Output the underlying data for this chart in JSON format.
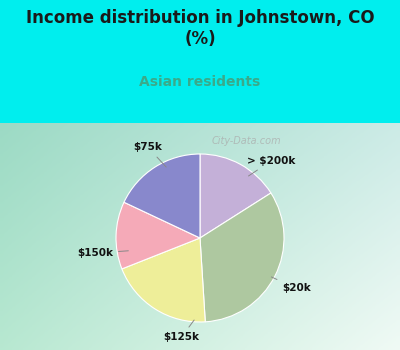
{
  "title": "Income distribution in Johnstown, CO\n(%)",
  "subtitle": "Asian residents",
  "title_color": "#1a1a1a",
  "subtitle_color": "#3aaa8a",
  "cyan_bg": "#00eeee",
  "chart_bg_left": "#b8e8d0",
  "chart_bg_right": "#e8f5f0",
  "slices": [
    {
      "label": "> $200k",
      "value": 16,
      "color": "#c4b0d8"
    },
    {
      "label": "$20k",
      "value": 33,
      "color": "#aec8a0"
    },
    {
      "label": "$125k",
      "value": 20,
      "color": "#eeee99"
    },
    {
      "label": "$150k",
      "value": 13,
      "color": "#f5aab8"
    },
    {
      "label": "$75k",
      "value": 18,
      "color": "#8888cc"
    }
  ],
  "start_angle": 90,
  "watermark": "City-Data.com",
  "figsize": [
    4.0,
    3.5
  ],
  "dpi": 100
}
